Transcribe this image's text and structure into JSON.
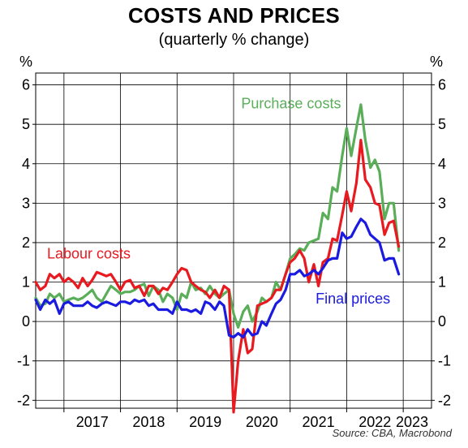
{
  "title": "COSTS AND PRICES",
  "subtitle": "(quarterly % change)",
  "source": "Source: CBA, Macrobond",
  "chart_data": {
    "type": "line",
    "y_unit": "%",
    "ylim": [
      -2.2,
      6.3
    ],
    "yticks": [
      "-2",
      "-1",
      "0",
      "1",
      "2",
      "3",
      "4",
      "5",
      "6"
    ],
    "xlim": [
      2016.5,
      2023.5
    ],
    "xtick_labels": [
      "2017",
      "2018",
      "2019",
      "2020",
      "2021",
      "2022",
      "2023"
    ],
    "grid": true,
    "annotations": [
      {
        "text": "Purchase costs",
        "series": "purchase",
        "anchor": [
          2021.9,
          5.4
        ]
      },
      {
        "text": "Labour costs",
        "series": "labour",
        "anchor": [
          2016.7,
          1.6
        ]
      },
      {
        "text": "Final prices",
        "series": "final",
        "anchor": [
          2021.45,
          0.45
        ]
      }
    ],
    "series": [
      {
        "key": "purchase",
        "color": "#5aae5a",
        "points": [
          [
            2016.5,
            0.6
          ],
          [
            2016.58,
            0.4
          ],
          [
            2016.67,
            0.45
          ],
          [
            2016.75,
            0.7
          ],
          [
            2016.83,
            0.6
          ],
          [
            2016.92,
            0.7
          ],
          [
            2017.0,
            0.5
          ],
          [
            2017.08,
            0.55
          ],
          [
            2017.17,
            0.6
          ],
          [
            2017.25,
            0.55
          ],
          [
            2017.33,
            0.6
          ],
          [
            2017.42,
            0.7
          ],
          [
            2017.5,
            0.8
          ],
          [
            2017.58,
            0.6
          ],
          [
            2017.67,
            0.5
          ],
          [
            2017.75,
            0.7
          ],
          [
            2017.83,
            0.9
          ],
          [
            2017.92,
            0.8
          ],
          [
            2018.0,
            0.7
          ],
          [
            2018.08,
            0.75
          ],
          [
            2018.17,
            0.75
          ],
          [
            2018.25,
            0.8
          ],
          [
            2018.33,
            0.9
          ],
          [
            2018.42,
            0.95
          ],
          [
            2018.5,
            0.65
          ],
          [
            2018.58,
            0.9
          ],
          [
            2018.67,
            0.8
          ],
          [
            2018.75,
            0.5
          ],
          [
            2018.83,
            0.7
          ],
          [
            2018.92,
            0.6
          ],
          [
            2019.0,
            0.3
          ],
          [
            2019.08,
            0.7
          ],
          [
            2019.17,
            0.6
          ],
          [
            2019.25,
            1.0
          ],
          [
            2019.33,
            0.8
          ],
          [
            2019.42,
            0.85
          ],
          [
            2019.5,
            0.7
          ],
          [
            2019.58,
            0.9
          ],
          [
            2019.67,
            0.7
          ],
          [
            2019.75,
            0.6
          ],
          [
            2019.83,
            0.7
          ],
          [
            2019.92,
            0.8
          ],
          [
            2020.0,
            0.2
          ],
          [
            2020.08,
            -0.15
          ],
          [
            2020.17,
            0.25
          ],
          [
            2020.25,
            0.4
          ],
          [
            2020.33,
            0.0
          ],
          [
            2020.42,
            0.25
          ],
          [
            2020.5,
            0.6
          ],
          [
            2020.58,
            0.5
          ],
          [
            2020.67,
            0.6
          ],
          [
            2020.75,
            1.0
          ],
          [
            2020.83,
            0.8
          ],
          [
            2020.92,
            1.2
          ],
          [
            2021.0,
            1.6
          ],
          [
            2021.08,
            1.7
          ],
          [
            2021.17,
            1.85
          ],
          [
            2021.25,
            1.8
          ],
          [
            2021.33,
            2.0
          ],
          [
            2021.42,
            2.05
          ],
          [
            2021.5,
            2.1
          ],
          [
            2021.58,
            2.75
          ],
          [
            2021.67,
            2.6
          ],
          [
            2021.75,
            3.4
          ],
          [
            2021.83,
            3.3
          ],
          [
            2021.92,
            4.2
          ],
          [
            2022.0,
            4.9
          ],
          [
            2022.08,
            4.2
          ],
          [
            2022.17,
            4.9
          ],
          [
            2022.25,
            5.5
          ],
          [
            2022.33,
            4.6
          ],
          [
            2022.42,
            3.9
          ],
          [
            2022.5,
            4.1
          ],
          [
            2022.58,
            3.8
          ],
          [
            2022.67,
            2.6
          ],
          [
            2022.75,
            3.0
          ],
          [
            2022.83,
            3.0
          ],
          [
            2022.92,
            1.8
          ]
        ]
      },
      {
        "key": "labour",
        "color": "#e8191f",
        "points": [
          [
            2016.5,
            1.0
          ],
          [
            2016.58,
            0.8
          ],
          [
            2016.67,
            0.9
          ],
          [
            2016.75,
            1.2
          ],
          [
            2016.83,
            1.1
          ],
          [
            2016.92,
            1.2
          ],
          [
            2017.0,
            1.0
          ],
          [
            2017.08,
            1.1
          ],
          [
            2017.17,
            1.0
          ],
          [
            2017.25,
            0.85
          ],
          [
            2017.33,
            1.1
          ],
          [
            2017.42,
            0.9
          ],
          [
            2017.5,
            1.05
          ],
          [
            2017.58,
            1.25
          ],
          [
            2017.67,
            1.2
          ],
          [
            2017.75,
            1.15
          ],
          [
            2017.83,
            1.2
          ],
          [
            2017.92,
            1.0
          ],
          [
            2018.0,
            0.8
          ],
          [
            2018.08,
            1.0
          ],
          [
            2018.17,
            1.05
          ],
          [
            2018.25,
            0.85
          ],
          [
            2018.33,
            0.9
          ],
          [
            2018.42,
            0.65
          ],
          [
            2018.5,
            0.9
          ],
          [
            2018.58,
            0.9
          ],
          [
            2018.67,
            0.7
          ],
          [
            2018.75,
            0.85
          ],
          [
            2018.83,
            0.8
          ],
          [
            2018.92,
            1.0
          ],
          [
            2019.0,
            1.2
          ],
          [
            2019.08,
            1.35
          ],
          [
            2019.17,
            1.3
          ],
          [
            2019.25,
            1.0
          ],
          [
            2019.33,
            0.9
          ],
          [
            2019.42,
            0.8
          ],
          [
            2019.5,
            0.75
          ],
          [
            2019.58,
            0.6
          ],
          [
            2019.67,
            0.8
          ],
          [
            2019.75,
            0.6
          ],
          [
            2019.83,
            0.9
          ],
          [
            2019.92,
            0.8
          ],
          [
            2020.0,
            -2.3
          ],
          [
            2020.08,
            -1.0
          ],
          [
            2020.17,
            -0.2
          ],
          [
            2020.25,
            -0.8
          ],
          [
            2020.33,
            -0.7
          ],
          [
            2020.42,
            0.4
          ],
          [
            2020.5,
            0.45
          ],
          [
            2020.58,
            0.5
          ],
          [
            2020.67,
            0.6
          ],
          [
            2020.75,
            0.8
          ],
          [
            2020.83,
            0.8
          ],
          [
            2020.92,
            1.2
          ],
          [
            2021.0,
            1.5
          ],
          [
            2021.08,
            1.6
          ],
          [
            2021.17,
            1.8
          ],
          [
            2021.25,
            1.6
          ],
          [
            2021.33,
            1.0
          ],
          [
            2021.42,
            1.45
          ],
          [
            2021.5,
            0.9
          ],
          [
            2021.58,
            1.5
          ],
          [
            2021.67,
            1.6
          ],
          [
            2021.75,
            2.1
          ],
          [
            2021.83,
            2.05
          ],
          [
            2021.92,
            2.7
          ],
          [
            2022.0,
            3.3
          ],
          [
            2022.08,
            2.8
          ],
          [
            2022.17,
            3.5
          ],
          [
            2022.25,
            4.6
          ],
          [
            2022.33,
            3.6
          ],
          [
            2022.42,
            3.4
          ],
          [
            2022.5,
            3.0
          ],
          [
            2022.58,
            2.95
          ],
          [
            2022.67,
            2.2
          ],
          [
            2022.75,
            2.5
          ],
          [
            2022.83,
            2.55
          ],
          [
            2022.92,
            1.9
          ]
        ]
      },
      {
        "key": "final",
        "color": "#1a1ae0",
        "points": [
          [
            2016.5,
            0.55
          ],
          [
            2016.58,
            0.3
          ],
          [
            2016.67,
            0.55
          ],
          [
            2016.75,
            0.45
          ],
          [
            2016.83,
            0.55
          ],
          [
            2016.92,
            0.2
          ],
          [
            2017.0,
            0.45
          ],
          [
            2017.08,
            0.5
          ],
          [
            2017.17,
            0.4
          ],
          [
            2017.25,
            0.4
          ],
          [
            2017.33,
            0.4
          ],
          [
            2017.42,
            0.5
          ],
          [
            2017.5,
            0.4
          ],
          [
            2017.58,
            0.35
          ],
          [
            2017.67,
            0.45
          ],
          [
            2017.75,
            0.5
          ],
          [
            2017.83,
            0.45
          ],
          [
            2017.92,
            0.4
          ],
          [
            2018.0,
            0.5
          ],
          [
            2018.08,
            0.5
          ],
          [
            2018.17,
            0.45
          ],
          [
            2018.25,
            0.55
          ],
          [
            2018.33,
            0.5
          ],
          [
            2018.42,
            0.55
          ],
          [
            2018.5,
            0.4
          ],
          [
            2018.58,
            0.45
          ],
          [
            2018.67,
            0.3
          ],
          [
            2018.75,
            0.3
          ],
          [
            2018.83,
            0.3
          ],
          [
            2018.92,
            0.2
          ],
          [
            2019.0,
            0.5
          ],
          [
            2019.08,
            0.3
          ],
          [
            2019.17,
            0.3
          ],
          [
            2019.25,
            0.25
          ],
          [
            2019.33,
            0.3
          ],
          [
            2019.42,
            0.2
          ],
          [
            2019.5,
            0.5
          ],
          [
            2019.58,
            0.45
          ],
          [
            2019.67,
            0.3
          ],
          [
            2019.75,
            0.5
          ],
          [
            2019.83,
            0.4
          ],
          [
            2019.92,
            -0.35
          ],
          [
            2020.0,
            -0.4
          ],
          [
            2020.08,
            -0.3
          ],
          [
            2020.17,
            -0.4
          ],
          [
            2020.25,
            -0.2
          ],
          [
            2020.33,
            -0.35
          ],
          [
            2020.42,
            -0.3
          ],
          [
            2020.5,
            0.0
          ],
          [
            2020.58,
            -0.1
          ],
          [
            2020.67,
            0.2
          ],
          [
            2020.75,
            0.45
          ],
          [
            2020.83,
            0.55
          ],
          [
            2020.92,
            0.8
          ],
          [
            2021.0,
            1.2
          ],
          [
            2021.08,
            1.2
          ],
          [
            2021.17,
            1.3
          ],
          [
            2021.25,
            1.15
          ],
          [
            2021.33,
            1.2
          ],
          [
            2021.42,
            1.3
          ],
          [
            2021.5,
            1.2
          ],
          [
            2021.58,
            1.35
          ],
          [
            2021.67,
            1.55
          ],
          [
            2021.75,
            1.6
          ],
          [
            2021.83,
            1.6
          ],
          [
            2021.92,
            2.25
          ],
          [
            2022.0,
            2.1
          ],
          [
            2022.08,
            2.15
          ],
          [
            2022.17,
            2.4
          ],
          [
            2022.25,
            2.6
          ],
          [
            2022.33,
            2.5
          ],
          [
            2022.42,
            2.2
          ],
          [
            2022.5,
            2.1
          ],
          [
            2022.58,
            2.0
          ],
          [
            2022.67,
            1.55
          ],
          [
            2022.75,
            1.6
          ],
          [
            2022.83,
            1.6
          ],
          [
            2022.92,
            1.2
          ]
        ]
      }
    ]
  }
}
